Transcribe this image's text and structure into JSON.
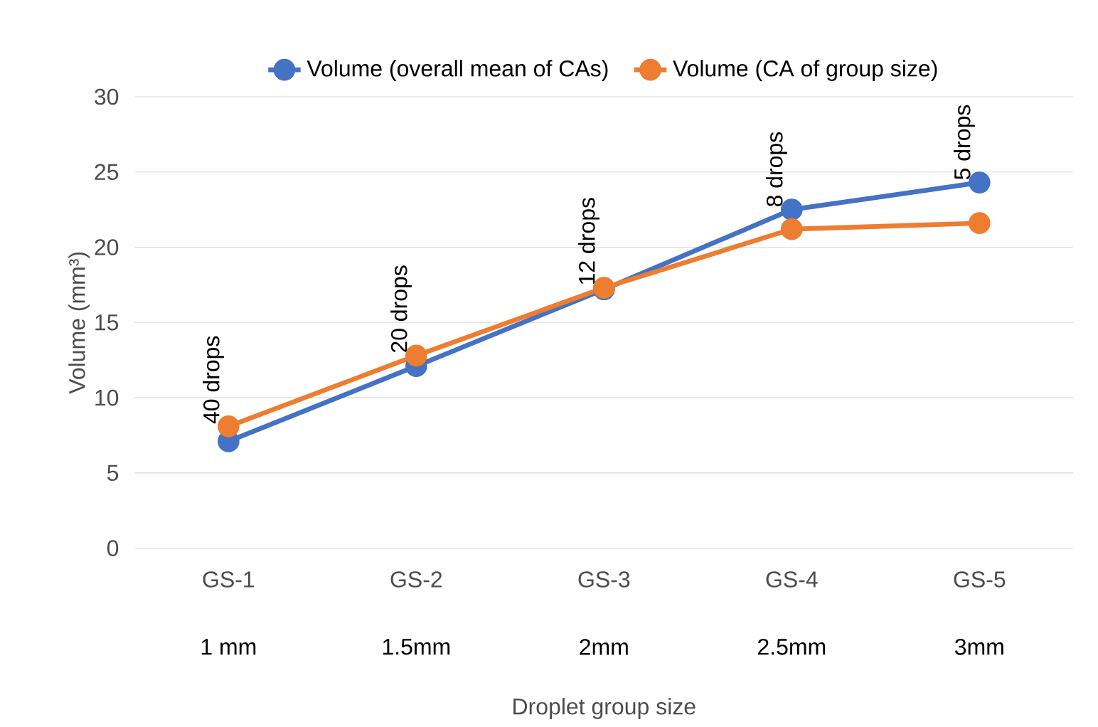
{
  "chart_data": {
    "type": "line",
    "xlabel": "Droplet group size",
    "ylabel": "Volume (mm³)",
    "categories": [
      "GS-1",
      "GS-2",
      "GS-3",
      "GS-4",
      "GS-5"
    ],
    "series": [
      {
        "name": "Volume (overall mean of CAs)",
        "color": "#4472c4",
        "values": [
          7.1,
          12.1,
          17.2,
          22.5,
          24.3
        ]
      },
      {
        "name": "Volume (CA of group size)",
        "color": "#ed7d31",
        "values": [
          8.1,
          12.8,
          17.3,
          21.2,
          21.6
        ]
      }
    ],
    "ylim": [
      0,
      30
    ],
    "yticks": [
      0,
      5,
      10,
      15,
      20,
      25,
      30
    ],
    "annotations": [
      {
        "text": "40 drops",
        "x": "GS-1",
        "y": 8.1
      },
      {
        "text": "20 drops",
        "x": "GS-2",
        "y": 12.8
      },
      {
        "text": "12 drops",
        "x": "GS-3",
        "y": 17.3
      },
      {
        "text": "8 drops",
        "x": "GS-4",
        "y": 22.5
      },
      {
        "text": "5 drops",
        "x": "GS-5",
        "y": 24.3
      },
      "1 mm",
      "1.5mm",
      "2mm",
      "2.5mm",
      "3mm"
    ],
    "grid": "y",
    "legend": "top",
    "marker": "circle",
    "line_style": "solid"
  }
}
